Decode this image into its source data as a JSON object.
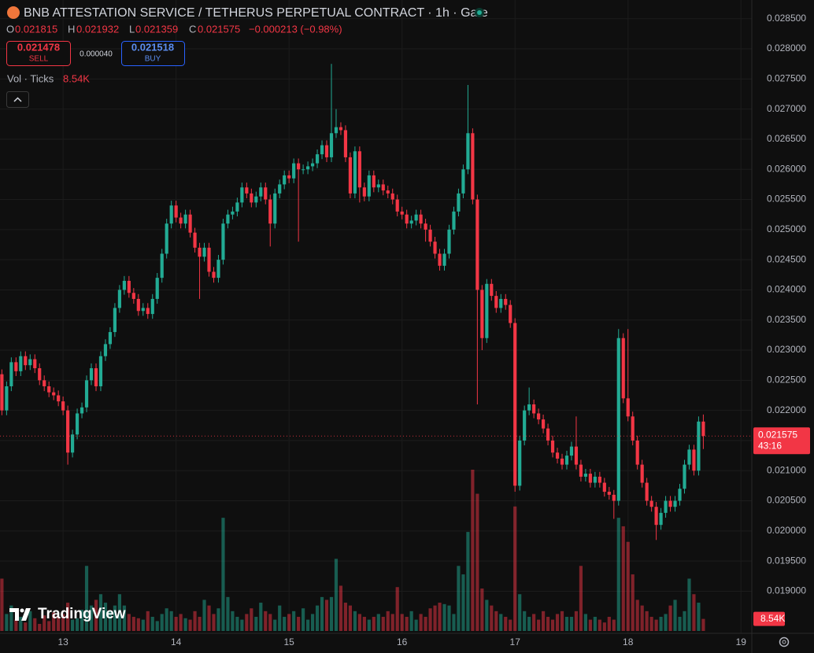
{
  "header": {
    "title": "BNB ATTESTATION SERVICE / TETHERUS PERPETUAL CONTRACT · 1h · Gate",
    "open_label": "O",
    "high_label": "H",
    "low_label": "L",
    "close_label": "C",
    "change": "−0.000213 (−0.98%)",
    "sell_price": "0.021478",
    "sell_label": "SELL",
    "spread": "0.000040",
    "buy_price": "0.021518",
    "buy_label": "BUY",
    "vol_label": "Vol · Ticks",
    "vol_value": "8.54K",
    "countdown": "43:16",
    "logo": "TradingView"
  },
  "chart_data": {
    "type": "candlestick",
    "up_color": "#22ab94",
    "down_color": "#f23645",
    "grid": true,
    "xlim": [
      -13.4,
      146.3
    ],
    "xticks": [
      {
        "value": 0,
        "label": "13"
      },
      {
        "value": 24,
        "label": "14"
      },
      {
        "value": 48,
        "label": "15"
      },
      {
        "value": 72,
        "label": "16"
      },
      {
        "value": 96,
        "label": "17"
      },
      {
        "value": 120,
        "label": "18"
      },
      {
        "value": 144,
        "label": "19"
      }
    ],
    "ylim": [
      0.01834,
      0.02881
    ],
    "yticks": [
      {
        "value": 0.0285,
        "label": "0.028500"
      },
      {
        "value": 0.028,
        "label": "0.028000"
      },
      {
        "value": 0.0275,
        "label": "0.027500"
      },
      {
        "value": 0.027,
        "label": "0.027000"
      },
      {
        "value": 0.0265,
        "label": "0.026500"
      },
      {
        "value": 0.026,
        "label": "0.026000"
      },
      {
        "value": 0.0255,
        "label": "0.025500"
      },
      {
        "value": 0.025,
        "label": "0.025000"
      },
      {
        "value": 0.0245,
        "label": "0.024500"
      },
      {
        "value": 0.024,
        "label": "0.024000"
      },
      {
        "value": 0.0235,
        "label": "0.023500"
      },
      {
        "value": 0.023,
        "label": "0.023000"
      },
      {
        "value": 0.0225,
        "label": "0.022500"
      },
      {
        "value": 0.022,
        "label": "0.022000"
      },
      {
        "value": 0.0215,
        "label": "0.021500"
      },
      {
        "value": 0.021,
        "label": "0.021000"
      },
      {
        "value": 0.0205,
        "label": "0.020500"
      },
      {
        "value": 0.02,
        "label": "0.020000"
      },
      {
        "value": 0.0195,
        "label": "0.019500"
      },
      {
        "value": 0.019,
        "label": "0.019000"
      }
    ],
    "x": [
      -13,
      -12,
      -11,
      -10,
      -9,
      -8,
      -7,
      -6,
      -5,
      -4,
      -3,
      -2,
      -1,
      0,
      1,
      2,
      3,
      4,
      5,
      6,
      7,
      8,
      9,
      10,
      11,
      12,
      13,
      14,
      15,
      16,
      17,
      18,
      19,
      20,
      21,
      22,
      23,
      24,
      25,
      26,
      27,
      28,
      29,
      30,
      31,
      32,
      33,
      34,
      35,
      36,
      37,
      38,
      39,
      40,
      41,
      42,
      43,
      44,
      45,
      46,
      47,
      48,
      49,
      50,
      51,
      52,
      53,
      54,
      55,
      56,
      57,
      58,
      59,
      60,
      61,
      62,
      63,
      64,
      65,
      66,
      67,
      68,
      69,
      70,
      71,
      72,
      73,
      74,
      75,
      76,
      77,
      78,
      79,
      80,
      81,
      82,
      83,
      84,
      85,
      86,
      87,
      88,
      89,
      90,
      91,
      92,
      93,
      94,
      95,
      96,
      97,
      98,
      99,
      100,
      101,
      102,
      103,
      104,
      105,
      106,
      107,
      108,
      109,
      110,
      111,
      112,
      113,
      114,
      115,
      116,
      117,
      118,
      119,
      120,
      121,
      122,
      123,
      124,
      125,
      126,
      127,
      128,
      129,
      130,
      131,
      132,
      133,
      134,
      135,
      136
    ],
    "open": [
      0.0226,
      0.022,
      0.0224,
      0.0228,
      0.02265,
      0.0229,
      0.02275,
      0.02285,
      0.0227,
      0.0225,
      0.0224,
      0.0223,
      0.02225,
      0.02215,
      0.022,
      0.0213,
      0.0216,
      0.02195,
      0.02205,
      0.0225,
      0.0227,
      0.0224,
      0.0229,
      0.0231,
      0.0233,
      0.0237,
      0.024,
      0.02415,
      0.02395,
      0.02385,
      0.02365,
      0.0237,
      0.0236,
      0.02385,
      0.0242,
      0.0246,
      0.0251,
      0.0254,
      0.0252,
      0.0251,
      0.02525,
      0.02495,
      0.0247,
      0.02455,
      0.0247,
      0.0243,
      0.0242,
      0.0245,
      0.0251,
      0.02525,
      0.0253,
      0.02545,
      0.0257,
      0.0256,
      0.02545,
      0.02555,
      0.0257,
      0.0255,
      0.0251,
      0.0256,
      0.02575,
      0.0259,
      0.02585,
      0.0261,
      0.026,
      0.026,
      0.02605,
      0.0261,
      0.02625,
      0.0264,
      0.0262,
      0.0266,
      0.0267,
      0.02665,
      0.0262,
      0.0256,
      0.0263,
      0.0257,
      0.02555,
      0.0259,
      0.0257,
      0.02575,
      0.02565,
      0.0256,
      0.0255,
      0.0253,
      0.02525,
      0.0251,
      0.02515,
      0.02525,
      0.0251,
      0.025,
      0.0248,
      0.0246,
      0.0244,
      0.0246,
      0.025,
      0.0253,
      0.0256,
      0.026,
      0.0266,
      0.0255,
      0.024,
      0.0232,
      0.0241,
      0.0239,
      0.0237,
      0.02385,
      0.02375,
      0.02345,
      0.02075,
      0.0215,
      0.022,
      0.0221,
      0.02195,
      0.02185,
      0.0217,
      0.0215,
      0.0213,
      0.0212,
      0.0211,
      0.02125,
      0.0214,
      0.0211,
      0.0209,
      0.02095,
      0.0208,
      0.0209,
      0.0208,
      0.02065,
      0.0206,
      0.0205,
      0.0232,
      0.0222,
      0.0219,
      0.0215,
      0.0211,
      0.0208,
      0.0205,
      0.0204,
      0.0201,
      0.0203,
      0.0205,
      0.0204,
      0.0205,
      0.0207,
      0.0211,
      0.02135,
      0.021,
      0.021815
    ],
    "high": [
      0.02268,
      0.02248,
      0.02288,
      0.02288,
      0.02298,
      0.02298,
      0.02293,
      0.02293,
      0.02278,
      0.02258,
      0.02248,
      0.02238,
      0.02233,
      0.02223,
      0.02208,
      0.02168,
      0.02203,
      0.02213,
      0.02258,
      0.02278,
      0.02278,
      0.02298,
      0.02318,
      0.02338,
      0.02378,
      0.02408,
      0.02423,
      0.02423,
      0.02403,
      0.02393,
      0.02378,
      0.02378,
      0.02393,
      0.02428,
      0.02468,
      0.02518,
      0.02548,
      0.02548,
      0.02528,
      0.02533,
      0.02533,
      0.02503,
      0.02478,
      0.02478,
      0.02478,
      0.02438,
      0.02458,
      0.02518,
      0.02533,
      0.02538,
      0.02553,
      0.02578,
      0.02578,
      0.02568,
      0.02563,
      0.02578,
      0.02578,
      0.02558,
      0.02568,
      0.02583,
      0.02598,
      0.02598,
      0.02618,
      0.02618,
      0.02608,
      0.02613,
      0.02618,
      0.02633,
      0.02648,
      0.02648,
      0.02775,
      0.027,
      0.02678,
      0.02673,
      0.02628,
      0.02638,
      0.02638,
      0.02578,
      0.02598,
      0.02598,
      0.02583,
      0.02583,
      0.02573,
      0.02568,
      0.02558,
      0.02538,
      0.02533,
      0.02523,
      0.02533,
      0.02533,
      0.02518,
      0.02508,
      0.02488,
      0.02468,
      0.02468,
      0.02508,
      0.02538,
      0.02568,
      0.02608,
      0.0274,
      0.02668,
      0.02558,
      0.02408,
      0.02418,
      0.02418,
      0.02398,
      0.02393,
      0.02393,
      0.02383,
      0.02353,
      0.02158,
      0.02208,
      0.02238,
      0.02218,
      0.02203,
      0.02193,
      0.02178,
      0.02158,
      0.02138,
      0.02128,
      0.02133,
      0.02148,
      0.0219,
      0.02118,
      0.02103,
      0.02103,
      0.02098,
      0.02098,
      0.02088,
      0.02073,
      0.02068,
      0.02335,
      0.02328,
      0.02335,
      0.02198,
      0.02158,
      0.02118,
      0.02088,
      0.02058,
      0.02048,
      0.02038,
      0.02058,
      0.02058,
      0.02058,
      0.02078,
      0.02118,
      0.02143,
      0.02143,
      0.0219,
      0.021932
    ],
    "low": [
      0.02192,
      0.02192,
      0.02232,
      0.02257,
      0.02257,
      0.02267,
      0.02267,
      0.02262,
      0.02242,
      0.02232,
      0.02222,
      0.02217,
      0.02207,
      0.02192,
      0.0211,
      0.02122,
      0.02152,
      0.02187,
      0.02197,
      0.02242,
      0.02232,
      0.02232,
      0.02282,
      0.02302,
      0.02322,
      0.02362,
      0.02392,
      0.02387,
      0.02377,
      0.02357,
      0.02357,
      0.02352,
      0.02352,
      0.02377,
      0.02412,
      0.02452,
      0.02502,
      0.02512,
      0.02502,
      0.02502,
      0.02487,
      0.02462,
      0.02385,
      0.02447,
      0.02422,
      0.02412,
      0.02412,
      0.02442,
      0.02502,
      0.02517,
      0.02522,
      0.02537,
      0.02552,
      0.02537,
      0.02537,
      0.02547,
      0.02542,
      0.02472,
      0.02502,
      0.02552,
      0.02567,
      0.02577,
      0.02577,
      0.0248,
      0.02592,
      0.02592,
      0.02597,
      0.02602,
      0.02617,
      0.02612,
      0.02612,
      0.02652,
      0.02657,
      0.02612,
      0.02552,
      0.02552,
      0.02545,
      0.02547,
      0.02547,
      0.02562,
      0.02562,
      0.02557,
      0.02552,
      0.02542,
      0.02522,
      0.02517,
      0.02502,
      0.02502,
      0.02507,
      0.02502,
      0.0248,
      0.02472,
      0.02452,
      0.02432,
      0.02432,
      0.02452,
      0.02492,
      0.02522,
      0.02552,
      0.02592,
      0.02542,
      0.0221,
      0.023,
      0.02312,
      0.02382,
      0.02362,
      0.02362,
      0.02367,
      0.02337,
      0.02065,
      0.02067,
      0.02142,
      0.02192,
      0.02187,
      0.02177,
      0.02162,
      0.02142,
      0.02122,
      0.02112,
      0.02102,
      0.02102,
      0.02117,
      0.02102,
      0.02082,
      0.02082,
      0.02072,
      0.02072,
      0.02072,
      0.02057,
      0.02052,
      0.0202,
      0.02042,
      0.02212,
      0.02182,
      0.02142,
      0.02102,
      0.02072,
      0.02042,
      0.02032,
      0.01985,
      0.02002,
      0.02022,
      0.02032,
      0.02032,
      0.02042,
      0.02062,
      0.02102,
      0.02092,
      0.02092,
      0.021359
    ],
    "close": [
      0.022,
      0.0224,
      0.0228,
      0.02265,
      0.0229,
      0.02275,
      0.02285,
      0.0227,
      0.0225,
      0.0224,
      0.0223,
      0.02225,
      0.02215,
      0.022,
      0.0213,
      0.0216,
      0.02195,
      0.02205,
      0.0225,
      0.0227,
      0.0224,
      0.0229,
      0.0231,
      0.0233,
      0.0237,
      0.024,
      0.02415,
      0.02395,
      0.02385,
      0.02365,
      0.0237,
      0.0236,
      0.02385,
      0.0242,
      0.0246,
      0.0251,
      0.0254,
      0.0252,
      0.0251,
      0.02525,
      0.02495,
      0.0247,
      0.02455,
      0.0247,
      0.0243,
      0.0242,
      0.0245,
      0.0251,
      0.02525,
      0.0253,
      0.02545,
      0.0257,
      0.0256,
      0.02545,
      0.02555,
      0.0257,
      0.0255,
      0.0251,
      0.0256,
      0.02575,
      0.0259,
      0.02585,
      0.0261,
      0.026,
      0.026,
      0.02605,
      0.0261,
      0.02625,
      0.0264,
      0.0262,
      0.0266,
      0.0267,
      0.02665,
      0.0262,
      0.0256,
      0.0263,
      0.0257,
      0.02555,
      0.0259,
      0.0257,
      0.02575,
      0.02565,
      0.0256,
      0.0255,
      0.0253,
      0.02525,
      0.0251,
      0.02515,
      0.02525,
      0.0251,
      0.025,
      0.0248,
      0.0246,
      0.0244,
      0.0246,
      0.025,
      0.0253,
      0.0256,
      0.026,
      0.0266,
      0.0255,
      0.024,
      0.0232,
      0.0241,
      0.0239,
      0.0237,
      0.02385,
      0.02375,
      0.02345,
      0.02075,
      0.0215,
      0.022,
      0.0221,
      0.02195,
      0.02185,
      0.0217,
      0.0215,
      0.0213,
      0.0212,
      0.0211,
      0.02125,
      0.0214,
      0.0211,
      0.0209,
      0.02095,
      0.0208,
      0.0209,
      0.0208,
      0.02065,
      0.0206,
      0.0205,
      0.0232,
      0.0222,
      0.0219,
      0.0215,
      0.0211,
      0.0208,
      0.0205,
      0.0204,
      0.0201,
      0.0203,
      0.0205,
      0.0204,
      0.0205,
      0.0207,
      0.0211,
      0.02135,
      0.021,
      0.021815,
      0.021575
    ],
    "volume": [
      37000,
      12000,
      18000,
      8000,
      10000,
      6000,
      14000,
      9000,
      5000,
      11000,
      7000,
      13000,
      10000,
      12000,
      20000,
      8000,
      9000,
      15000,
      46000,
      18000,
      22000,
      26000,
      20000,
      14000,
      18000,
      26000,
      18000,
      12000,
      10000,
      9000,
      8000,
      14000,
      10000,
      7000,
      12000,
      16000,
      14000,
      10000,
      12000,
      9000,
      8000,
      14000,
      10000,
      22000,
      18000,
      12000,
      16000,
      80000,
      24000,
      14000,
      10000,
      8000,
      12000,
      16000,
      10000,
      20000,
      14000,
      12000,
      8000,
      18000,
      10000,
      12000,
      14000,
      10000,
      16000,
      8000,
      12000,
      18000,
      24000,
      22000,
      24000,
      51000,
      32000,
      20000,
      18000,
      14000,
      12000,
      10000,
      8000,
      10000,
      12000,
      10000,
      14000,
      12000,
      31000,
      12000,
      10000,
      14000,
      8000,
      12000,
      10000,
      16000,
      18000,
      20000,
      19000,
      18000,
      12000,
      46000,
      40000,
      70000,
      114000,
      97000,
      30000,
      22000,
      18000,
      14000,
      12000,
      10000,
      8000,
      88000,
      26000,
      14000,
      10000,
      12000,
      8000,
      14000,
      10000,
      8000,
      12000,
      14000,
      10000,
      10000,
      14000,
      46000,
      12000,
      8000,
      10000,
      8000,
      6000,
      10000,
      8000,
      80000,
      74000,
      63000,
      40000,
      22000,
      18000,
      14000,
      10000,
      8000,
      10000,
      12000,
      18000,
      22000,
      10000,
      14000,
      37000,
      26000,
      20000,
      8540
    ]
  }
}
